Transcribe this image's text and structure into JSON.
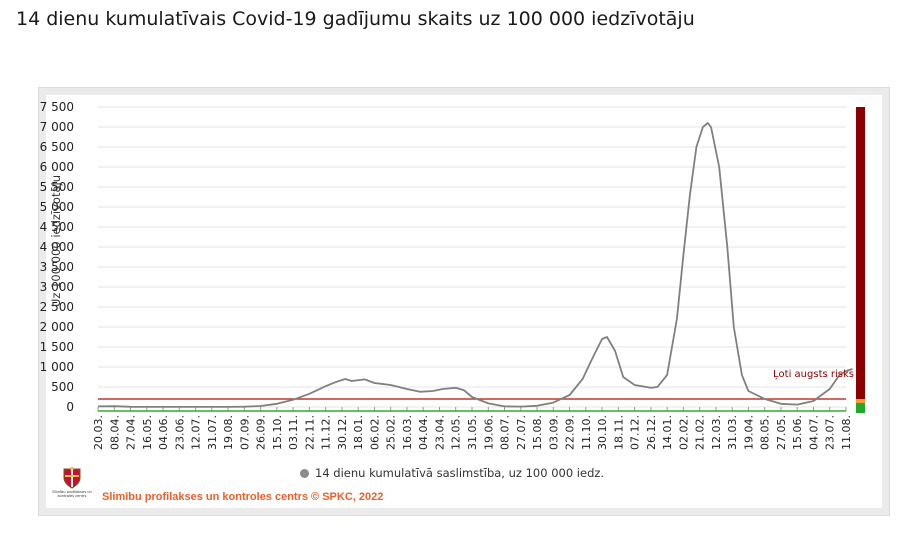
{
  "page": {
    "title": "14 dienu kumulatīvais Covid-19 gadījumu skaits uz 100 000 iedzīvotāju"
  },
  "legend": {
    "label": "14 dienu kumulatīvā saslimstība, uz 100 000 iedz."
  },
  "footer": {
    "credit": "Slimību profilakses un kontroles centrs © SPKC, 2022"
  },
  "logo": {
    "text_line1": "Slimību profilakses un",
    "text_line2": "kontroles centrs"
  },
  "chart_data": {
    "type": "line",
    "title": "",
    "ylabel": "Uz 100 000 iedzīvotāju",
    "xlabel": "",
    "ylim": [
      0,
      7500
    ],
    "yticks": [
      0,
      500,
      1000,
      1500,
      2000,
      2500,
      3000,
      3500,
      4000,
      4500,
      5000,
      5500,
      6000,
      6500,
      7000,
      7500
    ],
    "ytick_labels": [
      "0",
      "500",
      "1 000",
      "1 500",
      "2 000",
      "2 500",
      "3 000",
      "3 500",
      "4 000",
      "4 500",
      "5 000",
      "5 500",
      "6 000",
      "6 500",
      "7 000",
      "7 500"
    ],
    "x_tick_labels": [
      "20.03.",
      "08.04.",
      "27.04.",
      "16.05.",
      "04.06.",
      "23.06.",
      "12.07.",
      "31.07.",
      "19.08.",
      "07.09.",
      "26.09.",
      "15.10.",
      "03.11.",
      "22.11.",
      "11.12.",
      "30.12.",
      "18.01.",
      "06.02.",
      "25.02.",
      "16.03.",
      "04.04.",
      "23.04.",
      "12.05.",
      "31.05.",
      "19.06.",
      "08.07.",
      "27.07.",
      "15.08.",
      "03.09.",
      "22.09.",
      "11.10.",
      "30.10.",
      "18.11.",
      "07.12.",
      "26.12.",
      "14.01.",
      "02.02.",
      "21.02.",
      "12.03.",
      "31.03.",
      "19.04.",
      "08.05.",
      "27.05.",
      "15.06.",
      "04.07.",
      "23.07.",
      "11.08."
    ],
    "grid": true,
    "legend_position": "bottom-center",
    "series": [
      {
        "name": "14 dienu kumulatīvā saslimstība, uz 100 000 iedz.",
        "color": "#808080",
        "points": [
          [
            0,
            15
          ],
          [
            1,
            20
          ],
          [
            2,
            5
          ],
          [
            3,
            3
          ],
          [
            4,
            2
          ],
          [
            5,
            2
          ],
          [
            6,
            2
          ],
          [
            7,
            2
          ],
          [
            8,
            3
          ],
          [
            9,
            8
          ],
          [
            10,
            25
          ],
          [
            11,
            80
          ],
          [
            12,
            180
          ],
          [
            13,
            330
          ],
          [
            14,
            520
          ],
          [
            14.6,
            620
          ],
          [
            15.2,
            700
          ],
          [
            15.6,
            650
          ],
          [
            16.4,
            690
          ],
          [
            17,
            600
          ],
          [
            18,
            550
          ],
          [
            19,
            450
          ],
          [
            19.8,
            380
          ],
          [
            20.6,
            400
          ],
          [
            21.2,
            450
          ],
          [
            22,
            480
          ],
          [
            22.5,
            420
          ],
          [
            23,
            250
          ],
          [
            24,
            90
          ],
          [
            25,
            15
          ],
          [
            26,
            10
          ],
          [
            27,
            30
          ],
          [
            28,
            110
          ],
          [
            29,
            300
          ],
          [
            29.8,
            700
          ],
          [
            30.5,
            1300
          ],
          [
            31,
            1700
          ],
          [
            31.3,
            1750
          ],
          [
            31.8,
            1400
          ],
          [
            32.3,
            750
          ],
          [
            33,
            550
          ],
          [
            34,
            480
          ],
          [
            34.4,
            500
          ],
          [
            35,
            800
          ],
          [
            35.6,
            2200
          ],
          [
            36,
            3800
          ],
          [
            36.4,
            5300
          ],
          [
            36.8,
            6500
          ],
          [
            37.2,
            7000
          ],
          [
            37.5,
            7100
          ],
          [
            37.7,
            7000
          ],
          [
            38.2,
            6000
          ],
          [
            38.7,
            4000
          ],
          [
            39.1,
            2000
          ],
          [
            39.6,
            800
          ],
          [
            40,
            400
          ],
          [
            41,
            200
          ],
          [
            42,
            80
          ],
          [
            43,
            60
          ],
          [
            44,
            150
          ],
          [
            45,
            450
          ],
          [
            45.6,
            800
          ],
          [
            46,
            900
          ],
          [
            46.4,
            950
          ]
        ]
      }
    ],
    "risk_bands": [
      {
        "label": "Ļoti augsts risks",
        "from": 200,
        "to": 7500,
        "color": "#8b0000"
      },
      {
        "label": "",
        "from": 100,
        "to": 200,
        "color": "#f29b30"
      },
      {
        "label": "",
        "from": 0,
        "to": 100,
        "color": "#24a829"
      }
    ],
    "threshold_lines": [
      {
        "value": 200,
        "color": "#c0392b"
      },
      {
        "value": 0,
        "color": "#2bb02b"
      }
    ]
  }
}
